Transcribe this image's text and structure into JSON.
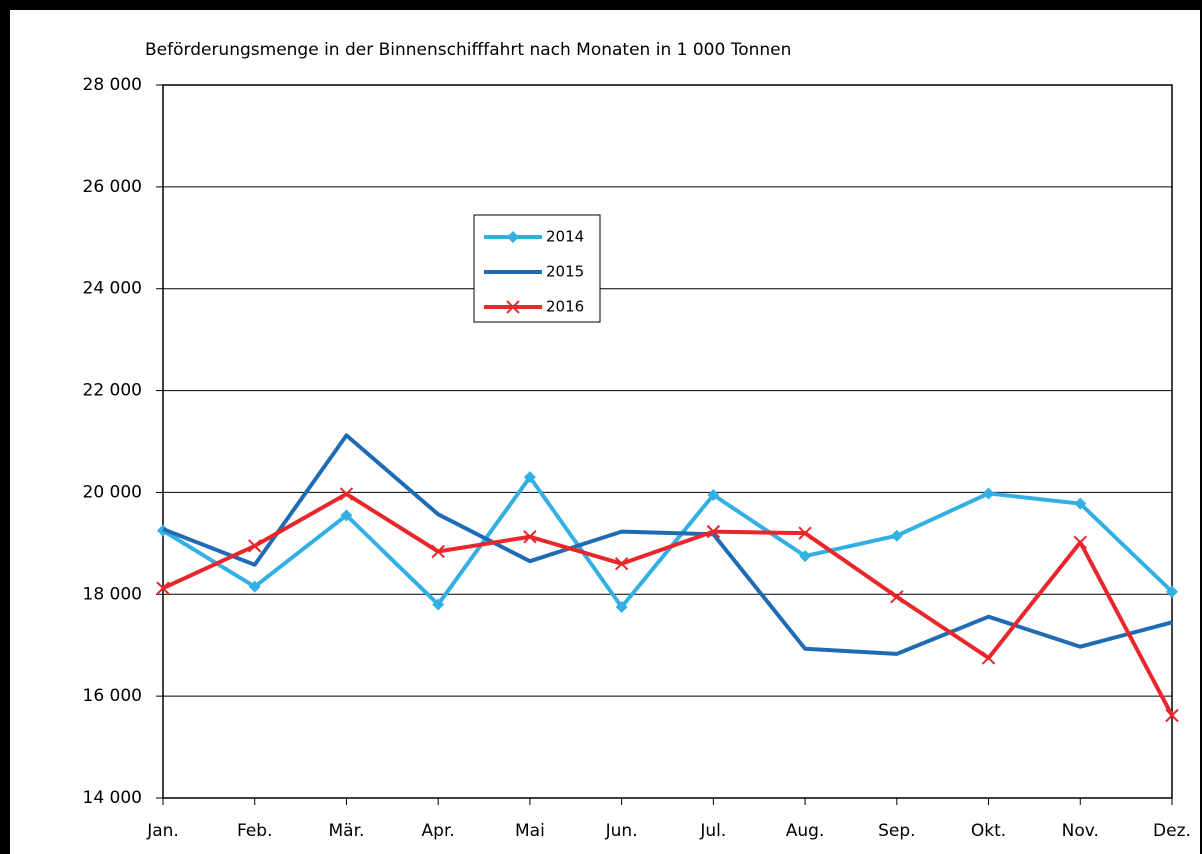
{
  "chart_data": {
    "type": "line",
    "title": "Beförderungsmenge in der Binnenschifffahrt nach Monaten in 1 000 Tonnen",
    "categories": [
      "Jan.",
      "Feb.",
      "Mär.",
      "Apr.",
      "Mai",
      "Jun.",
      "Jul.",
      "Aug.",
      "Sep.",
      "Okt.",
      "Nov.",
      "Dez."
    ],
    "series": [
      {
        "name": "2014",
        "color": "#33b0e3",
        "marker": "diamond",
        "values": [
          19250,
          18150,
          19550,
          17800,
          20300,
          17750,
          19950,
          18750,
          19150,
          19980,
          19780,
          18050
        ]
      },
      {
        "name": "2015",
        "color": "#1f6cb5",
        "marker": "none",
        "values": [
          19280,
          18580,
          21120,
          19570,
          18650,
          19230,
          19180,
          16930,
          16830,
          17560,
          16970,
          17450
        ]
      },
      {
        "name": "2016",
        "color": "#e8262b",
        "marker": "x",
        "values": [
          18120,
          18950,
          19970,
          18840,
          19130,
          18600,
          19230,
          19200,
          17950,
          16750,
          19020,
          15620
        ]
      }
    ],
    "ylim": [
      14000,
      28000
    ],
    "yticks": [
      {
        "value": 14000,
        "label": "14 000"
      },
      {
        "value": 16000,
        "label": "16 000"
      },
      {
        "value": 18000,
        "label": "18 000"
      },
      {
        "value": 20000,
        "label": "20 000"
      },
      {
        "value": 22000,
        "label": "22 000"
      },
      {
        "value": 24000,
        "label": "24 000"
      },
      {
        "value": 26000,
        "label": "26 000"
      },
      {
        "value": 28000,
        "label": "28 000"
      }
    ],
    "grid": true
  }
}
